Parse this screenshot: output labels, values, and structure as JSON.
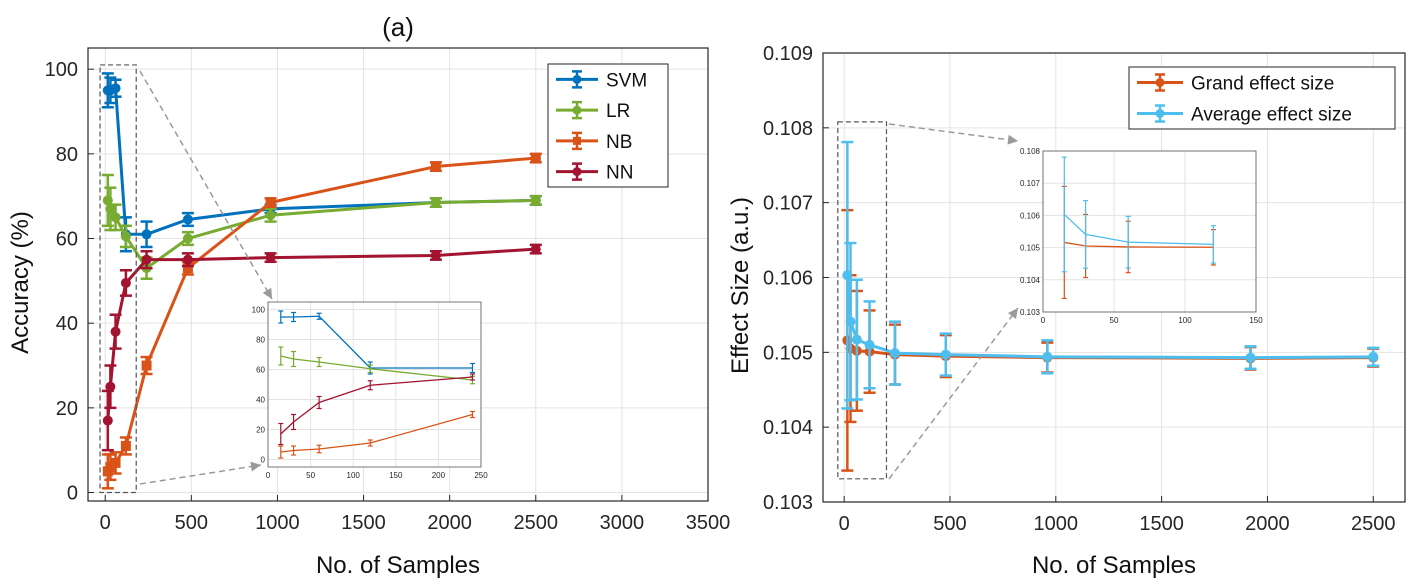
{
  "chart_data": [
    {
      "type": "line",
      "id": "accuracy",
      "title": "(a)",
      "xlabel": "No. of Samples",
      "ylabel": "Accuracy (%)",
      "xlim": [
        -100,
        3500
      ],
      "ylim": [
        -2,
        105
      ],
      "xticks": [
        0,
        500,
        1000,
        1500,
        2000,
        2500,
        3000,
        3500
      ],
      "yticks": [
        0,
        20,
        40,
        60,
        80,
        100
      ],
      "xtick_labels": [
        "0",
        "500",
        "1000",
        "1500",
        "2000",
        "2500",
        "3000",
        "3500"
      ],
      "ytick_labels": [
        "0",
        "20",
        "40",
        "60",
        "80",
        "100"
      ],
      "grid": true,
      "legend_position": "top-right",
      "series": [
        {
          "name": "SVM",
          "color": "#0072bd",
          "marker": "circle",
          "x": [
            15,
            30,
            60,
            120,
            240,
            480,
            960,
            1920,
            2500
          ],
          "y": [
            95,
            95,
            95.5,
            61,
            61,
            64.5,
            67,
            68.5,
            69
          ],
          "err": [
            4,
            3,
            2,
            4,
            3,
            1.5,
            1,
            1,
            1
          ]
        },
        {
          "name": "LR",
          "color": "#77ac30",
          "marker": "circle",
          "x": [
            15,
            30,
            60,
            120,
            240,
            480,
            960,
            1920,
            2500
          ],
          "y": [
            69,
            67,
            65,
            60.5,
            53,
            60,
            65.5,
            68.5,
            69
          ],
          "err": [
            6,
            5,
            3,
            2.5,
            2.5,
            1.5,
            1.5,
            1,
            1
          ]
        },
        {
          "name": "NB",
          "color": "#d95319",
          "marker": "square",
          "x": [
            15,
            30,
            60,
            120,
            240,
            480,
            960,
            1920,
            2500
          ],
          "y": [
            5,
            6,
            7,
            11,
            30,
            53,
            68.5,
            77,
            79
          ],
          "err": [
            4,
            3,
            2.5,
            2,
            2,
            1.5,
            1,
            1,
            1
          ]
        },
        {
          "name": "NN",
          "color": "#a2142f",
          "marker": "circle",
          "x": [
            15,
            30,
            60,
            120,
            240,
            480,
            960,
            1920,
            2500
          ],
          "y": [
            17,
            25,
            38,
            49.5,
            55,
            55,
            55.5,
            56,
            57.5
          ],
          "err": [
            7,
            5,
            4,
            3,
            2,
            1.5,
            1,
            1,
            1
          ]
        }
      ],
      "inset": {
        "xlim": [
          0,
          250
        ],
        "ylim": [
          -5,
          105
        ],
        "xticks": [
          0,
          50,
          100,
          150,
          200,
          250
        ],
        "yticks": [
          0,
          20,
          40,
          60,
          80,
          100
        ],
        "xtick_labels": [
          "0",
          "50",
          "100",
          "150",
          "200",
          "250"
        ],
        "ytick_labels": [
          "0",
          "20",
          "40",
          "60",
          "80",
          "100"
        ],
        "zoom_region_x": [
          -30,
          180
        ],
        "zoom_region_y": [
          0,
          101
        ]
      }
    },
    {
      "type": "line",
      "id": "effect-size",
      "title": "",
      "xlabel": "No. of Samples",
      "ylabel": "Effect Size (a.u.)",
      "xlim": [
        -100,
        2650
      ],
      "ylim": [
        0.103,
        0.109
      ],
      "xticks": [
        0,
        500,
        1000,
        1500,
        2000,
        2500
      ],
      "yticks": [
        0.103,
        0.104,
        0.105,
        0.106,
        0.107,
        0.108,
        0.109
      ],
      "xtick_labels": [
        "0",
        "500",
        "1000",
        "1500",
        "2000",
        "2500"
      ],
      "ytick_labels": [
        "0.103",
        "0.104",
        "0.105",
        "0.106",
        "0.107",
        "0.108",
        "0.109"
      ],
      "grid": true,
      "legend_position": "top-right",
      "series": [
        {
          "name": "Grand effect size",
          "color": "#d95319",
          "marker": "circle",
          "x": [
            15,
            30,
            60,
            120,
            240,
            480,
            960,
            1920,
            2500
          ],
          "y": [
            0.10516,
            0.10505,
            0.10502,
            0.10501,
            0.10497,
            0.10495,
            0.10493,
            0.10492,
            0.10493
          ],
          "err": [
            0.00174,
            0.00098,
            0.0008,
            0.00055,
            0.0004,
            0.00028,
            0.0002,
            0.00015,
            0.00012
          ]
        },
        {
          "name": "Average effect size",
          "color": "#4dbeee",
          "marker": "circle",
          "x": [
            15,
            30,
            60,
            120,
            240,
            480,
            960,
            1920,
            2500
          ],
          "y": [
            0.10603,
            0.10541,
            0.10517,
            0.1051,
            0.10499,
            0.10497,
            0.10494,
            0.10493,
            0.10494
          ],
          "err": [
            0.00178,
            0.00105,
            0.0008,
            0.00058,
            0.00042,
            0.00028,
            0.00022,
            0.00015,
            0.00012
          ]
        }
      ],
      "inset": {
        "xlim": [
          0,
          150
        ],
        "ylim": [
          0.103,
          0.108
        ],
        "xticks": [
          0,
          50,
          100,
          150
        ],
        "yticks": [
          0.103,
          0.104,
          0.105,
          0.106,
          0.107,
          0.108
        ],
        "xtick_labels": [
          "0",
          "50",
          "100",
          "150"
        ],
        "ytick_labels": [
          "0.103",
          "0.104",
          "0.105",
          "0.106",
          "0.107",
          "0.108"
        ],
        "zoom_region_x": [
          -30,
          200
        ],
        "zoom_region_y": [
          0.10331,
          0.10808
        ]
      }
    }
  ]
}
